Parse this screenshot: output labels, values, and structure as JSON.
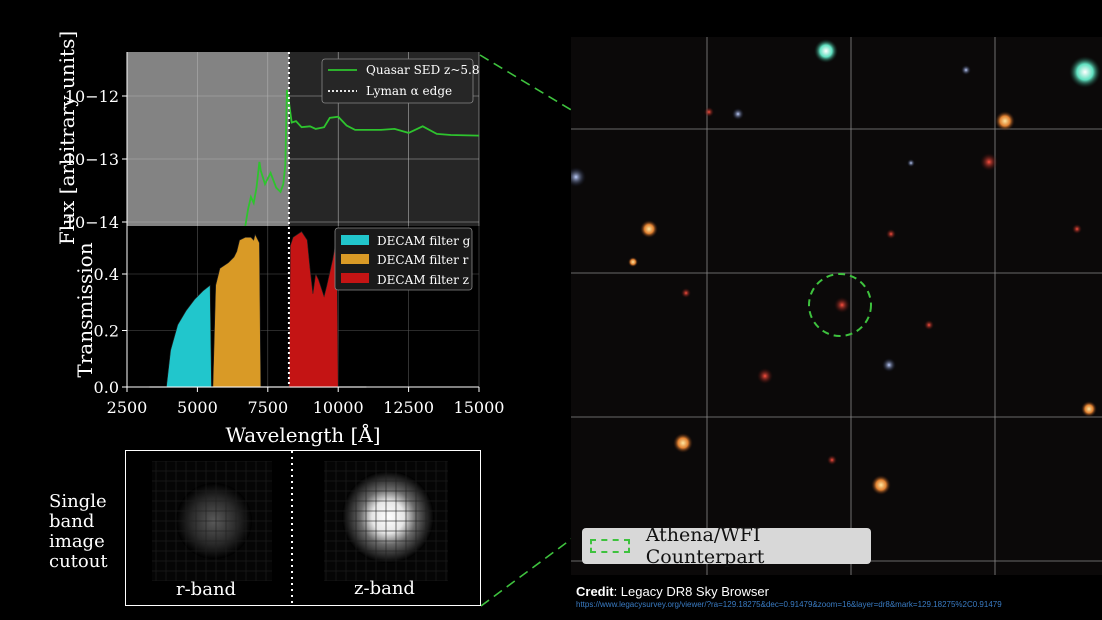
{
  "chart_data": [
    {
      "type": "line",
      "panel": "sed",
      "title": "",
      "ylabel": "Flux [arbitrary units]",
      "yscale": "log",
      "ylim": [
        1e-14,
        5e-12
      ],
      "xlim": [
        2500,
        15000
      ],
      "ytick_labels": [
        "10−12",
        "10−13",
        "10−14"
      ],
      "ytick_values": [
        1e-12,
        1e-13,
        1e-14
      ],
      "series": [
        {
          "name": "Quasar SED z~5.8",
          "color": "#2ec42e",
          "x": [
            6700,
            6800,
            6900,
            7000,
            7100,
            7200,
            7250,
            7400,
            7600,
            7800,
            7950,
            8050,
            8120,
            8180,
            8250,
            8350,
            8500,
            8700,
            9000,
            9200,
            9500,
            9700,
            10000,
            10300,
            10600,
            11000,
            11500,
            12000,
            12500,
            13000,
            13500,
            14000,
            15000
          ],
          "y": [
            8e-15,
            1.6e-14,
            2.5e-14,
            2e-14,
            3.5e-14,
            9e-14,
            6.5e-14,
            4e-14,
            6e-14,
            3.5e-14,
            3e-14,
            4e-14,
            8e-14,
            1.25e-12,
            8e-13,
            3.8e-13,
            4e-13,
            3.2e-13,
            3.3e-13,
            3e-13,
            3.2e-13,
            4.5e-13,
            4.7e-13,
            3.4e-13,
            2.9e-13,
            2.9e-13,
            2.9e-13,
            3e-13,
            2.6e-13,
            3.3e-13,
            2.5e-13,
            2.4e-13,
            2.35e-13
          ]
        }
      ],
      "lyman_edge": {
        "x": 8250,
        "label": "Lyman α edge"
      },
      "legend_position": "top-right"
    },
    {
      "type": "area",
      "panel": "filters",
      "ylabel": "Transmission",
      "xlabel": "Wavelength [Å]",
      "xlim": [
        2500,
        15000
      ],
      "ylim": [
        0,
        0.56
      ],
      "xtick_labels": [
        "2500",
        "5000",
        "7500",
        "10000",
        "12500",
        "15000"
      ],
      "xtick_values": [
        2500,
        5000,
        7500,
        10000,
        12500,
        15000
      ],
      "ytick_labels": [
        "0.0",
        "0.2",
        "0.4"
      ],
      "ytick_values": [
        0.0,
        0.2,
        0.4
      ],
      "series": [
        {
          "name": "DECAM filter g",
          "color": "#21c6cc",
          "x": [
            3900,
            4050,
            4300,
            4600,
            4900,
            5200,
            5450,
            5500
          ],
          "y": [
            0.0,
            0.13,
            0.22,
            0.27,
            0.31,
            0.34,
            0.36,
            0.0
          ]
        },
        {
          "name": "DECAM filter r",
          "color": "#d99a26",
          "x": [
            5550,
            5650,
            5800,
            6100,
            6300,
            6400,
            6500,
            6700,
            6900,
            7000,
            7050,
            7200,
            7250
          ],
          "y": [
            0.0,
            0.36,
            0.42,
            0.44,
            0.46,
            0.48,
            0.52,
            0.53,
            0.53,
            0.52,
            0.54,
            0.51,
            0.0
          ]
        },
        {
          "name": "DECAM filter z",
          "color": "#c41414",
          "x": [
            8250,
            8300,
            8400,
            8700,
            8900,
            9000,
            9100,
            9200,
            9300,
            9500,
            9600,
            9800,
            9950,
            10000
          ],
          "y": [
            0.0,
            0.5,
            0.53,
            0.55,
            0.52,
            0.42,
            0.33,
            0.4,
            0.38,
            0.32,
            0.36,
            0.45,
            0.53,
            0.0
          ]
        }
      ],
      "baseline": {
        "x": [
          3300,
          11000
        ]
      },
      "lyman_edge": {
        "x": 8250
      },
      "legend_position": "top-right"
    }
  ],
  "cutouts": {
    "title": "Single\nband\nimage\ncutout",
    "r_label": "r-band",
    "z_label": "z-band"
  },
  "sky": {
    "legend_label": "Athena/WFI Counterpart",
    "credit_label": "Credit",
    "credit_text": ": Legacy DR8 Sky Browser",
    "credit_url": "https://www.legacysurvey.org/viewer/?ra=129.18275&dec=0.91479&zoom=16&layer=dr8&mark=129.18275%2C0.91479"
  },
  "colors": {
    "background": "#000000",
    "sed_masked_region": "#838383",
    "sed_panel": "#262626",
    "highlight": "#3ec23e"
  }
}
